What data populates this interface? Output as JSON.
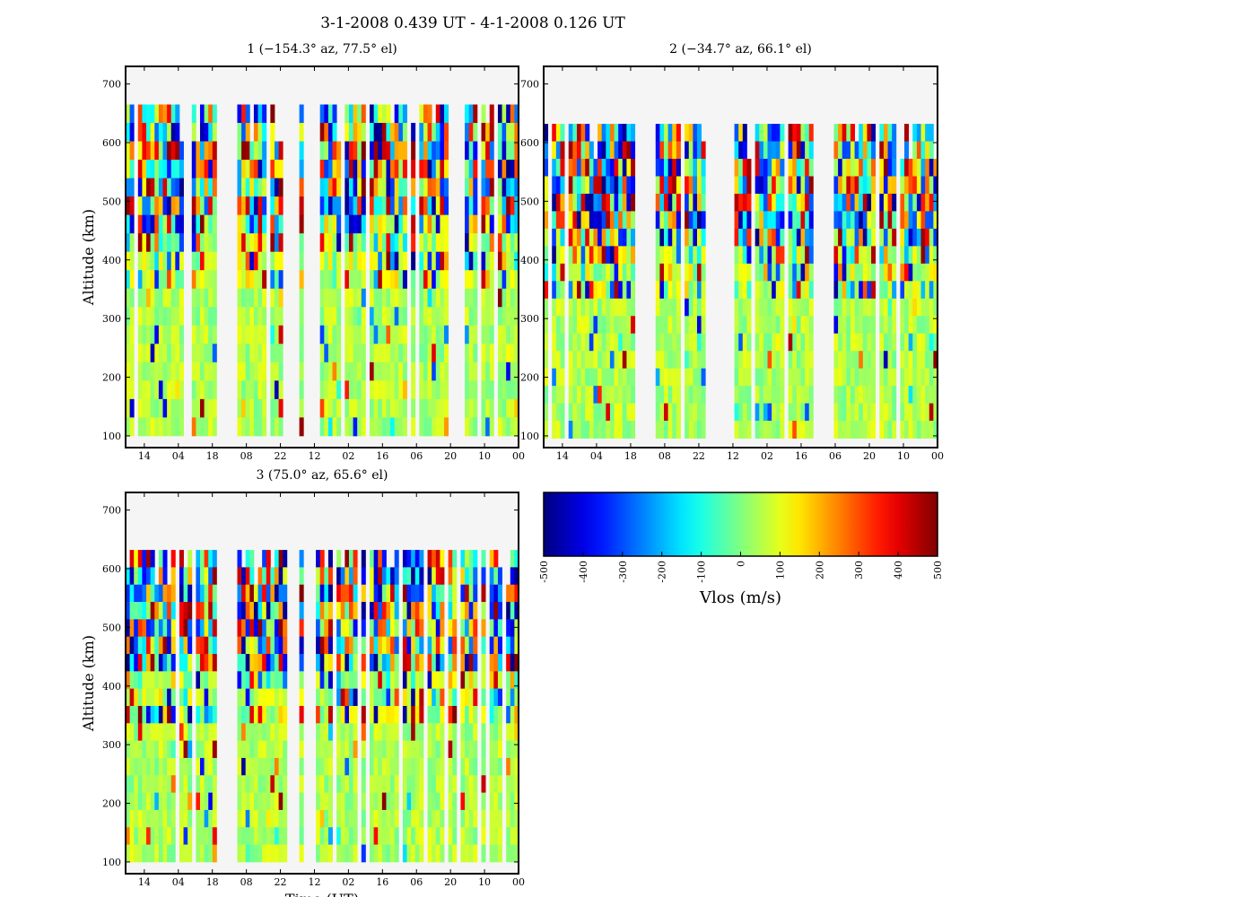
{
  "figure": {
    "suptitle": "3-1-2008 0.439 UT - 4-1-2008 0.126 UT",
    "background_color": "#f5f5f5",
    "missing_color": "#f5f5f5",
    "colormap": "jet"
  },
  "chart_data": [
    {
      "type": "heatmap",
      "title": "1 (−154.3° az, 77.5° el)",
      "ylabel": "Altitude (km)",
      "xlabel": "",
      "xticklabels": [
        "14",
        "04",
        "18",
        "08",
        "22",
        "12",
        "02",
        "16",
        "06",
        "20",
        "10",
        "00"
      ],
      "yticks": [
        100,
        200,
        300,
        400,
        500,
        600,
        700
      ],
      "ylim": [
        80,
        730
      ],
      "value_range": [
        -500,
        500
      ],
      "altitude_top": 665,
      "altitude_bottom": 100,
      "gaps": [
        [
          0.235,
          0.285
        ],
        [
          0.41,
          0.44
        ],
        [
          0.448,
          0.485
        ],
        [
          0.84,
          0.855
        ],
        [
          0.89,
          0.9
        ]
      ]
    },
    {
      "type": "heatmap",
      "title": "2 (−34.7° az, 66.1° el)",
      "ylabel": "",
      "xlabel": "",
      "xticklabels": [
        "14",
        "04",
        "18",
        "08",
        "22",
        "12",
        "02",
        "16",
        "06",
        "20",
        "10",
        "00"
      ],
      "yticks": [
        100,
        200,
        300,
        400,
        500,
        600,
        700
      ],
      "ylim": [
        80,
        730
      ],
      "value_range": [
        -500,
        500
      ],
      "altitude_top": 632,
      "altitude_bottom": 96,
      "gaps": [
        [
          0.235,
          0.285
        ],
        [
          0.41,
          0.44
        ],
        [
          0.448,
          0.485
        ],
        [
          0.68,
          0.74
        ],
        [
          0.84,
          0.855
        ],
        [
          0.89,
          0.9
        ]
      ]
    },
    {
      "type": "heatmap",
      "title": "3 (75.0° az, 65.6° el)",
      "ylabel": "Altitude (km)",
      "xlabel": "Time (UT)",
      "xticklabels": [
        "14",
        "04",
        "18",
        "08",
        "22",
        "12",
        "02",
        "16",
        "06",
        "20",
        "10",
        "00"
      ],
      "yticks": [
        100,
        200,
        300,
        400,
        500,
        600,
        700
      ],
      "ylim": [
        80,
        730
      ],
      "value_range": [
        -500,
        500
      ],
      "altitude_top": 632,
      "altitude_bottom": 100,
      "gaps": [
        [
          0.235,
          0.285
        ],
        [
          0.41,
          0.44
        ],
        [
          0.448,
          0.485
        ],
        [
          0.84,
          0.855
        ],
        [
          0.89,
          0.9
        ]
      ]
    }
  ],
  "colorbar": {
    "label": "Vlos (m/s)",
    "ticks": [
      -500,
      -400,
      -300,
      -200,
      -100,
      0,
      100,
      200,
      300,
      400,
      500
    ],
    "vmin": -500,
    "vmax": 500
  }
}
